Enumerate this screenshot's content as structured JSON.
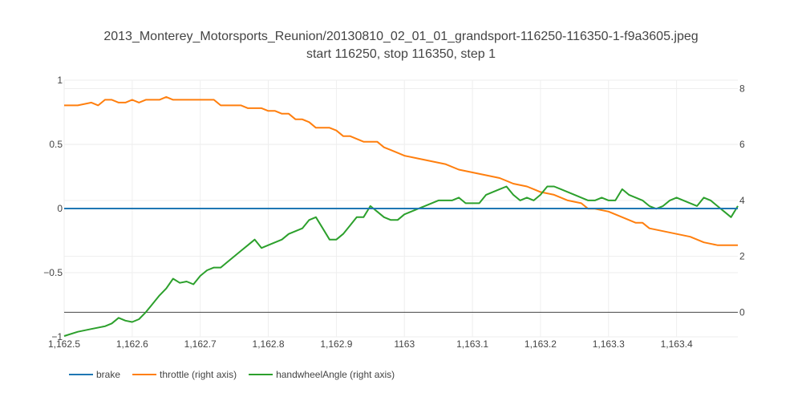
{
  "chart_data": {
    "type": "line",
    "title": "2013_Monterey_Motorsports_Reunion/20130810_02_01_01_grandsport-116250-116350-1-f9a3605.jpeg",
    "subtitle": "start 116250, stop 116350, step 1",
    "xlim": [
      1162.5,
      1163.49
    ],
    "x_ticks": [
      1162.5,
      1162.6,
      1162.7,
      1162.8,
      1162.9,
      1163.0,
      1163.1,
      1163.2,
      1163.3,
      1163.4
    ],
    "x_tick_labels": [
      "1,162.5",
      "1,162.6",
      "1,162.7",
      "1,162.8",
      "1,162.9",
      "1163",
      "1,163.1",
      "1,163.2",
      "1,163.3",
      "1,163.4"
    ],
    "y_left": {
      "range": [
        -1,
        1
      ],
      "ticks": [
        -1,
        -0.5,
        0,
        0.5,
        1
      ],
      "tick_labels": [
        "−1",
        "−0.5",
        "0",
        "0.5",
        "1"
      ]
    },
    "y_right": {
      "range": [
        -0.88,
        8.3
      ],
      "ticks": [
        0,
        2,
        4,
        6,
        8
      ],
      "tick_labels": [
        "0",
        "2",
        "4",
        "6",
        "8"
      ]
    },
    "grid": true,
    "legend_position": "bottom-left",
    "series": [
      {
        "name": "brake",
        "axis": "left",
        "color": "#1f77b4",
        "x": [
          1162.5,
          1163.49
        ],
        "y": [
          0,
          0
        ]
      },
      {
        "name": "throttle (right axis)",
        "axis": "right",
        "color": "#ff7f0e",
        "x": [
          1162.5,
          1162.52,
          1162.54,
          1162.55,
          1162.56,
          1162.57,
          1162.58,
          1162.59,
          1162.6,
          1162.61,
          1162.62,
          1162.63,
          1162.64,
          1162.65,
          1162.66,
          1162.67,
          1162.68,
          1162.69,
          1162.7,
          1162.71,
          1162.72,
          1162.73,
          1162.75,
          1162.76,
          1162.77,
          1162.78,
          1162.79,
          1162.8,
          1162.81,
          1162.82,
          1162.83,
          1162.84,
          1162.85,
          1162.86,
          1162.87,
          1162.88,
          1162.89,
          1162.9,
          1162.91,
          1162.92,
          1162.93,
          1162.94,
          1162.95,
          1162.96,
          1162.97,
          1162.98,
          1162.99,
          1163.0,
          1163.02,
          1163.04,
          1163.06,
          1163.08,
          1163.1,
          1163.12,
          1163.14,
          1163.16,
          1163.18,
          1163.19,
          1163.2,
          1163.22,
          1163.24,
          1163.26,
          1163.27,
          1163.28,
          1163.3,
          1163.31,
          1163.32,
          1163.34,
          1163.35,
          1163.36,
          1163.38,
          1163.4,
          1163.42,
          1163.43,
          1163.44,
          1163.46,
          1163.49
        ],
        "y": [
          7.4,
          7.4,
          7.5,
          7.4,
          7.6,
          7.6,
          7.5,
          7.5,
          7.6,
          7.5,
          7.6,
          7.6,
          7.6,
          7.7,
          7.6,
          7.6,
          7.6,
          7.6,
          7.6,
          7.6,
          7.6,
          7.4,
          7.4,
          7.4,
          7.3,
          7.3,
          7.3,
          7.2,
          7.2,
          7.1,
          7.1,
          6.9,
          6.9,
          6.8,
          6.6,
          6.6,
          6.6,
          6.5,
          6.3,
          6.3,
          6.2,
          6.1,
          6.1,
          6.1,
          5.9,
          5.8,
          5.7,
          5.6,
          5.5,
          5.4,
          5.3,
          5.1,
          5.0,
          4.9,
          4.8,
          4.6,
          4.5,
          4.4,
          4.3,
          4.2,
          4.0,
          3.9,
          3.7,
          3.7,
          3.6,
          3.5,
          3.4,
          3.2,
          3.2,
          3.0,
          2.9,
          2.8,
          2.7,
          2.6,
          2.5,
          2.4,
          2.4
        ]
      },
      {
        "name": "handwheelAngle (right axis)",
        "axis": "right",
        "color": "#2ca02c",
        "x": [
          1162.5,
          1162.52,
          1162.54,
          1162.56,
          1162.57,
          1162.58,
          1162.59,
          1162.6,
          1162.61,
          1162.62,
          1162.63,
          1162.64,
          1162.65,
          1162.66,
          1162.67,
          1162.68,
          1162.69,
          1162.7,
          1162.71,
          1162.72,
          1162.73,
          1162.74,
          1162.75,
          1162.76,
          1162.77,
          1162.78,
          1162.79,
          1162.8,
          1162.81,
          1162.82,
          1162.83,
          1162.84,
          1162.85,
          1162.86,
          1162.87,
          1162.88,
          1162.89,
          1162.9,
          1162.91,
          1162.92,
          1162.93,
          1162.94,
          1162.95,
          1162.96,
          1162.97,
          1162.98,
          1162.99,
          1163.0,
          1163.01,
          1163.02,
          1163.03,
          1163.04,
          1163.05,
          1163.06,
          1163.07,
          1163.08,
          1163.09,
          1163.1,
          1163.11,
          1163.12,
          1163.13,
          1163.14,
          1163.15,
          1163.16,
          1163.17,
          1163.18,
          1163.19,
          1163.2,
          1163.21,
          1163.22,
          1163.23,
          1163.24,
          1163.25,
          1163.26,
          1163.27,
          1163.28,
          1163.29,
          1163.3,
          1163.31,
          1163.32,
          1163.33,
          1163.34,
          1163.35,
          1163.36,
          1163.37,
          1163.38,
          1163.39,
          1163.4,
          1163.41,
          1163.42,
          1163.43,
          1163.44,
          1163.45,
          1163.46,
          1163.47,
          1163.48,
          1163.49
        ],
        "y": [
          -0.85,
          -0.7,
          -0.6,
          -0.5,
          -0.4,
          -0.2,
          -0.3,
          -0.35,
          -0.25,
          0.0,
          0.3,
          0.6,
          0.85,
          1.2,
          1.05,
          1.1,
          1.0,
          1.3,
          1.5,
          1.6,
          1.6,
          1.8,
          2.0,
          2.2,
          2.4,
          2.6,
          2.3,
          2.4,
          2.5,
          2.6,
          2.8,
          2.9,
          3.0,
          3.3,
          3.4,
          3.0,
          2.6,
          2.6,
          2.8,
          3.1,
          3.4,
          3.4,
          3.8,
          3.6,
          3.4,
          3.3,
          3.3,
          3.5,
          3.6,
          3.7,
          3.8,
          3.9,
          4.0,
          4.0,
          4.0,
          4.1,
          3.9,
          3.9,
          3.9,
          4.2,
          4.3,
          4.4,
          4.5,
          4.2,
          4.0,
          4.1,
          4.0,
          4.2,
          4.5,
          4.5,
          4.4,
          4.3,
          4.2,
          4.1,
          4.0,
          4.0,
          4.1,
          4.0,
          4.0,
          4.4,
          4.2,
          4.1,
          4.0,
          3.8,
          3.7,
          3.8,
          4.0,
          4.1,
          4.0,
          3.9,
          3.8,
          4.1,
          4.0,
          3.8,
          3.6,
          3.4,
          3.8
        ]
      }
    ]
  }
}
